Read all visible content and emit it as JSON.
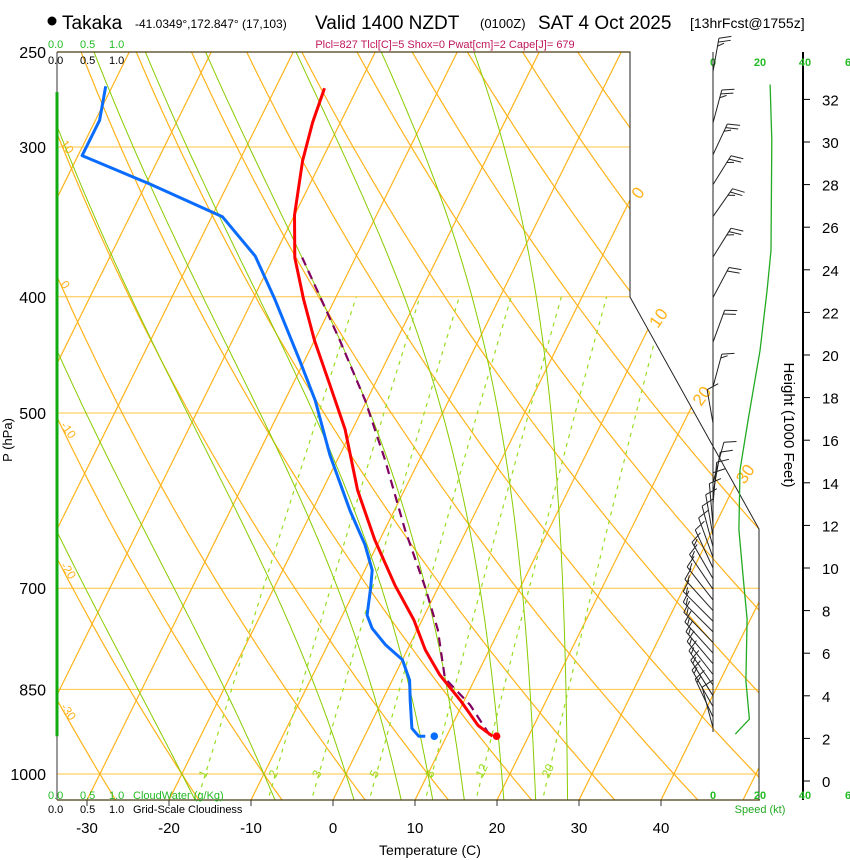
{
  "header": {
    "station": "Takaka",
    "coords": "-41.0349°,172.847° (17,103)",
    "valid": "Valid 1400 NZDT",
    "utc": "(0100Z)",
    "date": "SAT 4 Oct 2025",
    "forecast": "[13hrFcst@1755z]",
    "indices": "Plcl=827 Tlcl[C]=5 Shox=0 Pwat[cm]=2 Cape[J]= 679"
  },
  "cloud_scales": {
    "top_green": [
      "0.0",
      "0.5",
      "1.0"
    ],
    "top_black": [
      "0.0",
      "0.5",
      "1.0"
    ],
    "bottom_green": [
      "0.0",
      "0.5",
      "1.0"
    ],
    "bottom_black": [
      "0.0",
      "0.5",
      "1.0"
    ],
    "cloudwater_label": "CloudWater (g/Kg)",
    "cloudiness_label": "Grid-Scale Cloudiness"
  },
  "colors": {
    "temperature": "#ff0000",
    "dewpoint": "#0a6cff",
    "parcel": "#800060",
    "isotherm": "#ffb31a",
    "isobar": "#ffc640",
    "moist_adiabat": "#88cc00",
    "mixing_ratio": "#99dd22",
    "wind_speed": "#22aa22",
    "cloud_water": "#11aa11",
    "indices": "#c0185a"
  },
  "chart_data": {
    "type": "skew-t",
    "title": "Takaka Valid 1400 NZDT SAT 4 Oct 2025",
    "ylabel": "P (hPa)",
    "xlabel": "Temperature (C)",
    "y2label": "Height (1000 Feet)",
    "wind_axis_label": "Speed (kt)",
    "pressure_ticks": [
      250,
      300,
      400,
      500,
      700,
      850,
      1000
    ],
    "temperature_ticks": [
      -30,
      -20,
      -10,
      0,
      10,
      20,
      30,
      40
    ],
    "height_ticks": [
      0,
      2,
      4,
      6,
      8,
      10,
      12,
      14,
      16,
      18,
      20,
      22,
      24,
      26,
      28,
      30,
      32
    ],
    "wind_speed_ticks": [
      "0",
      "20",
      "40",
      "6"
    ],
    "isotherm_labels": [
      0,
      10,
      20,
      30
    ],
    "dry_adiabat_labels": [
      10,
      0,
      -10,
      -20,
      -30
    ],
    "mixing_ratio_labels": [
      1,
      2,
      3,
      5,
      8,
      12,
      20
    ],
    "moist_adiabat_T1000": [
      -20,
      -10,
      0,
      6,
      10,
      14,
      19,
      23,
      27
    ],
    "temperature_profile": [
      [
        930,
        15.6
      ],
      [
        911,
        13.2
      ],
      [
        868,
        9.5
      ],
      [
        827,
        5.5
      ],
      [
        788,
        2.2
      ],
      [
        744,
        -1.0
      ],
      [
        696,
        -5.4
      ],
      [
        638,
        -10.6
      ],
      [
        580,
        -15.7
      ],
      [
        516,
        -20.9
      ],
      [
        474,
        -25.4
      ],
      [
        435,
        -30.0
      ],
      [
        402,
        -33.8
      ],
      [
        371,
        -37.4
      ],
      [
        342,
        -40.0
      ],
      [
        308,
        -42.3
      ],
      [
        286,
        -43.4
      ],
      [
        268,
        -44.0
      ]
    ],
    "dewpoint_profile": [
      [
        930,
        7.4
      ],
      [
        930,
        6.6
      ],
      [
        916,
        5.3
      ],
      [
        868,
        3.4
      ],
      [
        835,
        2.1
      ],
      [
        803,
        0.0
      ],
      [
        780,
        -3.0
      ],
      [
        756,
        -5.6
      ],
      [
        737,
        -7.0
      ],
      [
        700,
        -8.2
      ],
      [
        676,
        -9.1
      ],
      [
        644,
        -11.5
      ],
      [
        603,
        -15.4
      ],
      [
        542,
        -21.2
      ],
      [
        488,
        -26.3
      ],
      [
        452,
        -30.6
      ],
      [
        402,
        -37.3
      ],
      [
        370,
        -42.3
      ],
      [
        343,
        -48.7
      ],
      [
        322,
        -59.6
      ],
      [
        305,
        -69.5
      ],
      [
        285,
        -69.5
      ],
      [
        267,
        -70.8
      ]
    ],
    "parcel_profile": [
      [
        928,
        15.2
      ],
      [
        876,
        11.0
      ],
      [
        832,
        6.3
      ],
      [
        758,
        2.5
      ],
      [
        700,
        -1.5
      ],
      [
        626,
        -7.5
      ],
      [
        547,
        -14.2
      ],
      [
        488,
        -20.2
      ],
      [
        435,
        -26.9
      ],
      [
        399,
        -32.1
      ],
      [
        371,
        -36.5
      ]
    ],
    "surface": {
      "pressure": 930,
      "temperature": 16.1,
      "dewpoint": 8.5
    },
    "wind_speed_profile": [
      [
        2.2,
        9.5
      ],
      [
        2.9,
        15.5
      ],
      [
        4.7,
        14
      ],
      [
        7.6,
        14.5
      ],
      [
        9.4,
        13
      ],
      [
        11.8,
        11
      ],
      [
        14.6,
        11.5
      ],
      [
        17,
        15
      ],
      [
        20.2,
        20
      ],
      [
        23,
        23
      ],
      [
        24.9,
        24.7
      ],
      [
        30.1,
        25
      ],
      [
        32.7,
        24.3
      ]
    ],
    "wind_barbs": [
      [
        33.3,
        10,
        25
      ],
      [
        30.9,
        15,
        25
      ],
      [
        29.4,
        25,
        25
      ],
      [
        28,
        32,
        25
      ],
      [
        26.5,
        35,
        25
      ],
      [
        24.6,
        32,
        24
      ],
      [
        22.7,
        28,
        22
      ],
      [
        20.6,
        20,
        20
      ],
      [
        18.5,
        15,
        15
      ],
      [
        16.8,
        350,
        10
      ],
      [
        14,
        15,
        11
      ],
      [
        13.5,
        10,
        11
      ],
      [
        13,
        5,
        11
      ],
      [
        12.5,
        0,
        11
      ],
      [
        12,
        355,
        11
      ],
      [
        11.5,
        350,
        11
      ],
      [
        11,
        345,
        11
      ],
      [
        10.5,
        340,
        12
      ],
      [
        10,
        335,
        12
      ],
      [
        9.5,
        330,
        13
      ],
      [
        9,
        326,
        13
      ],
      [
        8.5,
        322,
        14
      ],
      [
        8,
        318,
        14
      ],
      [
        7.5,
        315,
        14
      ],
      [
        7,
        315,
        14
      ],
      [
        6.5,
        316,
        14
      ],
      [
        6,
        318,
        14
      ],
      [
        5.5,
        320,
        14
      ],
      [
        5,
        322,
        14
      ],
      [
        4.5,
        325,
        14
      ],
      [
        4,
        328,
        14
      ],
      [
        3.5,
        330,
        15
      ],
      [
        3,
        335,
        15
      ],
      [
        2.5,
        345,
        10
      ]
    ],
    "cloud_water_pressure_range": [
      270,
      930
    ]
  }
}
